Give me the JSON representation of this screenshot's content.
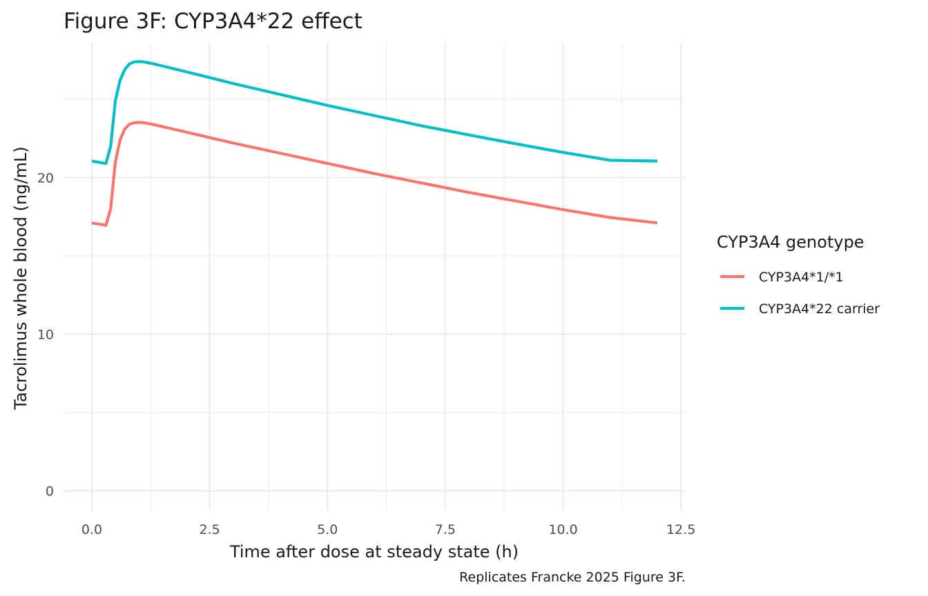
{
  "chart_data": {
    "type": "line",
    "title": "Figure 3F: CYP3A4*22 effect",
    "xlabel": "Time after dose at steady state (h)",
    "ylabel": "Tacrolimus whole blood (ng/mL)",
    "caption": "Replicates Francke 2025 Figure 3F.",
    "legend_title": "CYP3A4 genotype",
    "legend_position": "right",
    "grid": true,
    "xlim": [
      -0.6,
      12.6
    ],
    "ylim": [
      -1.25,
      28.6
    ],
    "x_ticks": [
      0,
      2.5,
      5,
      7.5,
      10,
      12.5
    ],
    "x_tick_labels": [
      "0.0",
      "2.5",
      "5.0",
      "7.5",
      "10.0",
      "12.5"
    ],
    "y_ticks": [
      0,
      10,
      20
    ],
    "y_tick_labels": [
      "0",
      "10",
      "20"
    ],
    "x": [
      0,
      0.3,
      0.4,
      0.5,
      0.6,
      0.7,
      0.8,
      0.9,
      1.0,
      1.1,
      1.25,
      1.5,
      2,
      2.5,
      3,
      4,
      5,
      6,
      7,
      8,
      9,
      10,
      11,
      12
    ],
    "series": [
      {
        "name": "CYP3A4*1/*1",
        "color": "#F8766D",
        "values": [
          17.1,
          16.95,
          18.0,
          21.0,
          22.4,
          23.1,
          23.4,
          23.5,
          23.52,
          23.5,
          23.42,
          23.25,
          22.9,
          22.55,
          22.2,
          21.55,
          20.9,
          20.25,
          19.65,
          19.05,
          18.5,
          17.95,
          17.45,
          17.1
        ]
      },
      {
        "name": "CYP3A4*22 carrier",
        "color": "#00BFC4",
        "values": [
          21.05,
          20.9,
          22.0,
          24.9,
          26.2,
          26.9,
          27.25,
          27.38,
          27.4,
          27.38,
          27.3,
          27.12,
          26.75,
          26.38,
          26.0,
          25.3,
          24.6,
          23.95,
          23.3,
          22.72,
          22.15,
          21.6,
          21.1,
          21.05
        ]
      }
    ]
  }
}
